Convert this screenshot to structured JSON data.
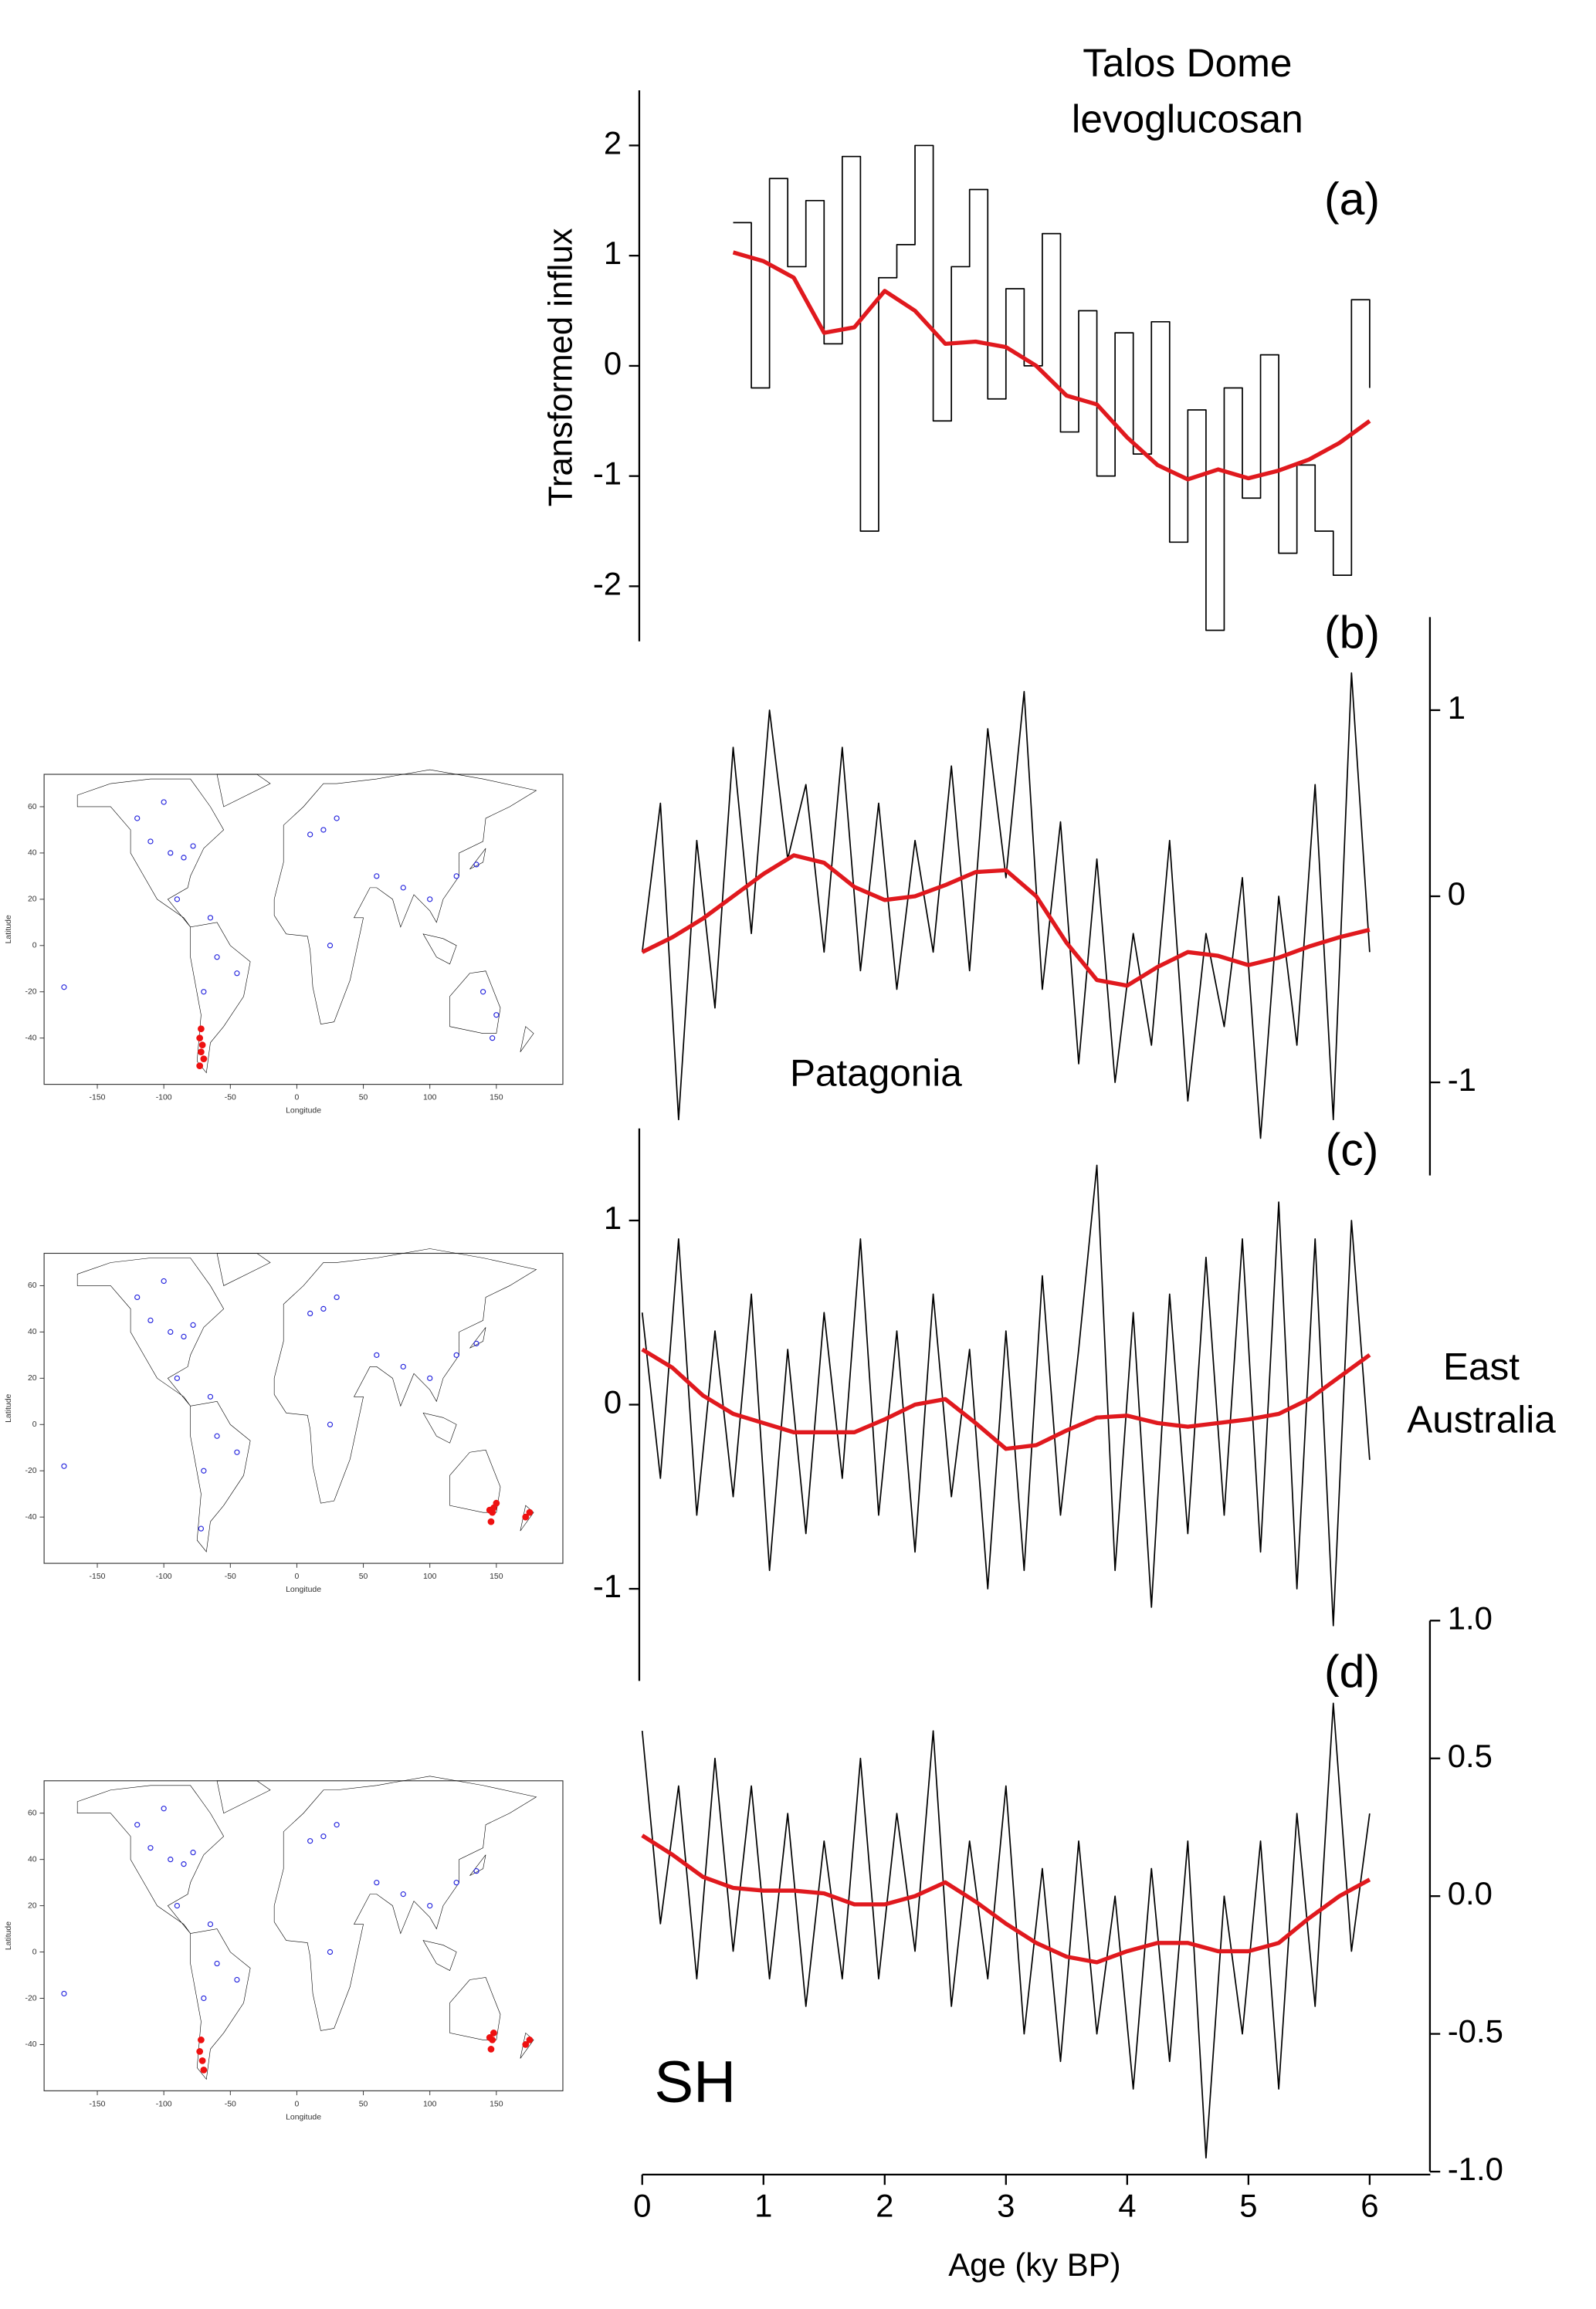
{
  "chart_data": [
    {
      "type": "line",
      "title": [
        "Talos Dome",
        "levoglucosan"
      ],
      "panel_label": "(a)",
      "ylabel": "Transformed influx",
      "xlim": [
        0,
        6.5
      ],
      "ylim": [
        -2.5,
        2.5
      ],
      "yticks": [
        -2,
        -1,
        0,
        1,
        2
      ],
      "y_axis_side": "left",
      "series": [
        {
          "color": "#000000",
          "step": true,
          "x": [
            0.75,
            0.9,
            1.05,
            1.2,
            1.35,
            1.5,
            1.65,
            1.8,
            1.95,
            2.1,
            2.25,
            2.4,
            2.55,
            2.7,
            2.85,
            3.0,
            3.15,
            3.3,
            3.45,
            3.6,
            3.75,
            3.9,
            4.05,
            4.2,
            4.35,
            4.5,
            4.65,
            4.8,
            4.95,
            5.1,
            5.25,
            5.4,
            5.55,
            5.7,
            5.85,
            6.0
          ],
          "values": [
            1.3,
            -0.2,
            1.7,
            0.9,
            1.5,
            0.2,
            1.9,
            -1.5,
            0.8,
            1.1,
            2.0,
            -0.5,
            0.9,
            1.6,
            -0.3,
            0.7,
            0.0,
            1.2,
            -0.6,
            0.5,
            -1.0,
            0.3,
            -0.8,
            0.4,
            -1.6,
            -0.4,
            -2.4,
            -0.2,
            -1.2,
            0.1,
            -1.7,
            -0.9,
            -1.5,
            -1.9,
            0.6,
            -0.2
          ]
        },
        {
          "color": "#e0191e",
          "x": [
            0.75,
            1,
            1.25,
            1.5,
            1.75,
            2,
            2.25,
            2.5,
            2.75,
            3,
            3.25,
            3.5,
            3.75,
            4,
            4.25,
            4.5,
            4.75,
            5,
            5.25,
            5.5,
            5.75,
            6
          ],
          "values": [
            1.03,
            0.95,
            0.8,
            0.3,
            0.35,
            0.68,
            0.5,
            0.2,
            0.22,
            0.17,
            0.0,
            -0.27,
            -0.35,
            -0.65,
            -0.9,
            -1.03,
            -0.94,
            -1.02,
            -0.95,
            -0.85,
            -0.7,
            -0.5
          ]
        }
      ]
    },
    {
      "type": "line",
      "panel_label": "(b)",
      "annotation": "Patagonia",
      "xlim": [
        0,
        6.5
      ],
      "ylim": [
        -1.5,
        1.5
      ],
      "yticks": [
        -1,
        0,
        1
      ],
      "y_axis_side": "right",
      "series": [
        {
          "color": "#000000",
          "x": [
            0,
            0.15,
            0.3,
            0.45,
            0.6,
            0.75,
            0.9,
            1.05,
            1.2,
            1.35,
            1.5,
            1.65,
            1.8,
            1.95,
            2.1,
            2.25,
            2.4,
            2.55,
            2.7,
            2.85,
            3,
            3.15,
            3.3,
            3.45,
            3.6,
            3.75,
            3.9,
            4.05,
            4.2,
            4.35,
            4.5,
            4.65,
            4.8,
            4.95,
            5.1,
            5.25,
            5.4,
            5.55,
            5.7,
            5.85,
            6
          ],
          "values": [
            -0.3,
            0.5,
            -1.2,
            0.3,
            -0.6,
            0.8,
            -0.2,
            1.0,
            0.2,
            0.6,
            -0.3,
            0.8,
            -0.4,
            0.5,
            -0.5,
            0.3,
            -0.3,
            0.7,
            -0.4,
            0.9,
            0.1,
            1.1,
            -0.5,
            0.4,
            -0.9,
            0.2,
            -1.0,
            -0.2,
            -0.8,
            0.3,
            -1.1,
            -0.2,
            -0.7,
            0.1,
            -1.3,
            0.0,
            -0.8,
            0.6,
            -1.2,
            1.2,
            -0.3
          ]
        },
        {
          "color": "#e0191e",
          "x": [
            0,
            0.25,
            0.5,
            0.75,
            1,
            1.25,
            1.5,
            1.75,
            2,
            2.25,
            2.5,
            2.75,
            3,
            3.25,
            3.5,
            3.75,
            4,
            4.25,
            4.5,
            4.75,
            5,
            5.25,
            5.5,
            5.75,
            6
          ],
          "values": [
            -0.3,
            -0.22,
            -0.12,
            0.0,
            0.12,
            0.22,
            0.18,
            0.05,
            -0.02,
            0.0,
            0.06,
            0.13,
            0.14,
            0.0,
            -0.25,
            -0.45,
            -0.48,
            -0.38,
            -0.3,
            -0.32,
            -0.37,
            -0.33,
            -0.27,
            -0.22,
            -0.18
          ]
        }
      ]
    },
    {
      "type": "line",
      "panel_label": "(c)",
      "annotation": [
        "East",
        "Australia"
      ],
      "xlim": [
        0,
        6.5
      ],
      "ylim": [
        -1.5,
        1.5
      ],
      "yticks": [
        -1,
        0,
        1
      ],
      "y_axis_side": "left",
      "series": [
        {
          "color": "#000000",
          "x": [
            0,
            0.15,
            0.3,
            0.45,
            0.6,
            0.75,
            0.9,
            1.05,
            1.2,
            1.35,
            1.5,
            1.65,
            1.8,
            1.95,
            2.1,
            2.25,
            2.4,
            2.55,
            2.7,
            2.85,
            3,
            3.15,
            3.3,
            3.45,
            3.6,
            3.75,
            3.9,
            4.05,
            4.2,
            4.35,
            4.5,
            4.65,
            4.8,
            4.95,
            5.1,
            5.25,
            5.4,
            5.55,
            5.7,
            5.85,
            6
          ],
          "values": [
            0.5,
            -0.4,
            0.9,
            -0.6,
            0.4,
            -0.5,
            0.6,
            -0.9,
            0.3,
            -0.7,
            0.5,
            -0.4,
            0.9,
            -0.6,
            0.4,
            -0.8,
            0.6,
            -0.5,
            0.3,
            -1.0,
            0.4,
            -0.9,
            0.7,
            -0.6,
            0.3,
            1.3,
            -0.9,
            0.5,
            -1.1,
            0.6,
            -0.7,
            0.8,
            -0.6,
            0.9,
            -0.8,
            1.1,
            -1.0,
            0.9,
            -1.2,
            1.0,
            -0.3
          ]
        },
        {
          "color": "#e0191e",
          "x": [
            0,
            0.25,
            0.5,
            0.75,
            1,
            1.25,
            1.5,
            1.75,
            2,
            2.25,
            2.5,
            2.75,
            3,
            3.25,
            3.5,
            3.75,
            4,
            4.25,
            4.5,
            4.75,
            5,
            5.25,
            5.5,
            5.75,
            6
          ],
          "values": [
            0.3,
            0.2,
            0.05,
            -0.05,
            -0.1,
            -0.15,
            -0.15,
            -0.15,
            -0.08,
            0.0,
            0.03,
            -0.1,
            -0.24,
            -0.22,
            -0.14,
            -0.07,
            -0.06,
            -0.1,
            -0.12,
            -0.1,
            -0.08,
            -0.05,
            0.03,
            0.15,
            0.27
          ]
        }
      ]
    },
    {
      "type": "line",
      "panel_label": "(d)",
      "annotation": "SH",
      "xlabel": "Age (ky BP)",
      "xlim": [
        0,
        6.5
      ],
      "xticks": [
        0,
        1,
        2,
        3,
        4,
        5,
        6
      ],
      "ylim": [
        -1,
        1
      ],
      "yticks": [
        {
          "value": -1,
          "label": "-1.0"
        },
        -0.5,
        {
          "value": 0,
          "label": "0.0"
        },
        0.5,
        {
          "value": 1,
          "label": "1.0"
        }
      ],
      "y_axis_side": "right",
      "series": [
        {
          "color": "#000000",
          "x": [
            0,
            0.15,
            0.3,
            0.45,
            0.6,
            0.75,
            0.9,
            1.05,
            1.2,
            1.35,
            1.5,
            1.65,
            1.8,
            1.95,
            2.1,
            2.25,
            2.4,
            2.55,
            2.7,
            2.85,
            3,
            3.15,
            3.3,
            3.45,
            3.6,
            3.75,
            3.9,
            4.05,
            4.2,
            4.35,
            4.5,
            4.65,
            4.8,
            4.95,
            5.1,
            5.25,
            5.4,
            5.55,
            5.7,
            5.85,
            6
          ],
          "values": [
            0.6,
            -0.1,
            0.4,
            -0.3,
            0.5,
            -0.2,
            0.4,
            -0.3,
            0.3,
            -0.4,
            0.2,
            -0.3,
            0.5,
            -0.3,
            0.3,
            -0.2,
            0.6,
            -0.4,
            0.2,
            -0.3,
            0.4,
            -0.5,
            0.1,
            -0.6,
            0.2,
            -0.5,
            0.0,
            -0.7,
            0.1,
            -0.6,
            0.2,
            -0.95,
            0.0,
            -0.5,
            0.2,
            -0.7,
            0.3,
            -0.4,
            0.7,
            -0.2,
            0.3
          ]
        },
        {
          "color": "#e0191e",
          "x": [
            0,
            0.25,
            0.5,
            0.75,
            1,
            1.25,
            1.5,
            1.75,
            2,
            2.25,
            2.5,
            2.75,
            3,
            3.25,
            3.5,
            3.75,
            4,
            4.25,
            4.5,
            4.75,
            5,
            5.25,
            5.5,
            5.75,
            6
          ],
          "values": [
            0.22,
            0.15,
            0.07,
            0.03,
            0.02,
            0.02,
            0.01,
            -0.03,
            -0.03,
            0.0,
            0.05,
            -0.02,
            -0.1,
            -0.17,
            -0.22,
            -0.24,
            -0.2,
            -0.17,
            -0.17,
            -0.2,
            -0.2,
            -0.17,
            -0.08,
            0.0,
            0.06
          ]
        }
      ]
    },
    {
      "type": "map",
      "xlabel": "Longitude",
      "ylabel": "Latitude",
      "xlim": [
        -190,
        200
      ],
      "ylim": [
        -60,
        74
      ],
      "xticks": [
        -150,
        -100,
        -50,
        0,
        50,
        100,
        150
      ],
      "yticks": [
        -40,
        -20,
        0,
        20,
        40,
        60
      ],
      "series": [
        {
          "color": "#2222dd",
          "x": [
            -120,
            -110,
            -95,
            -85,
            -78,
            -90,
            -100,
            -60,
            -45,
            -70,
            10,
            20,
            30,
            25,
            60,
            80,
            100,
            120,
            135,
            140,
            150,
            147,
            -175,
            -65
          ],
          "values": [
            55,
            45,
            40,
            38,
            43,
            20,
            62,
            -5,
            -12,
            -20,
            48,
            50,
            55,
            0,
            30,
            25,
            20,
            30,
            35,
            -20,
            -30,
            -40,
            -18,
            12
          ]
        },
        {
          "color": "#ee1111",
          "filled": true,
          "x": [
            -72,
            -73,
            -71,
            -72,
            -70,
            -73
          ],
          "values": [
            -36,
            -40,
            -43,
            -46,
            -49,
            -52
          ]
        }
      ]
    },
    {
      "type": "map",
      "xlabel": "Longitude",
      "ylabel": "Latitude",
      "xlim": [
        -190,
        200
      ],
      "ylim": [
        -60,
        74
      ],
      "xticks": [
        -150,
        -100,
        -50,
        0,
        50,
        100,
        150
      ],
      "yticks": [
        -40,
        -20,
        0,
        20,
        40,
        60
      ],
      "series": [
        {
          "color": "#2222dd",
          "x": [
            -120,
            -110,
            -95,
            -85,
            -78,
            -90,
            -100,
            -60,
            -45,
            -70,
            -72,
            10,
            20,
            30,
            25,
            60,
            80,
            100,
            120,
            135,
            -175,
            -65
          ],
          "values": [
            55,
            45,
            40,
            38,
            43,
            20,
            62,
            -5,
            -12,
            -20,
            -45,
            48,
            50,
            55,
            0,
            30,
            25,
            20,
            30,
            35,
            -18,
            12
          ]
        },
        {
          "color": "#ee1111",
          "filled": true,
          "x": [
            145,
            147,
            148,
            150,
            146,
            172,
            175
          ],
          "values": [
            -37,
            -38,
            -36,
            -34,
            -42,
            -40,
            -38
          ]
        }
      ]
    },
    {
      "type": "map",
      "xlabel": "Longitude",
      "ylabel": "Latitude",
      "xlim": [
        -190,
        200
      ],
      "ylim": [
        -60,
        74
      ],
      "xticks": [
        -150,
        -100,
        -50,
        0,
        50,
        100,
        150
      ],
      "yticks": [
        -40,
        -20,
        0,
        20,
        40,
        60
      ],
      "series": [
        {
          "color": "#2222dd",
          "x": [
            -120,
            -110,
            -95,
            -85,
            -78,
            -90,
            -100,
            -60,
            -45,
            -70,
            10,
            20,
            30,
            25,
            60,
            80,
            100,
            120,
            135,
            -175,
            -65
          ],
          "values": [
            55,
            45,
            40,
            38,
            43,
            20,
            62,
            -5,
            -12,
            -20,
            48,
            50,
            55,
            0,
            30,
            25,
            20,
            30,
            35,
            -18,
            12
          ]
        },
        {
          "color": "#ee1111",
          "filled": true,
          "x": [
            -72,
            -73,
            -71,
            -70,
            145,
            147,
            148,
            146,
            172,
            175
          ],
          "values": [
            -38,
            -43,
            -47,
            -51,
            -37,
            -38,
            -35,
            -42,
            -40,
            -38
          ]
        }
      ]
    }
  ]
}
